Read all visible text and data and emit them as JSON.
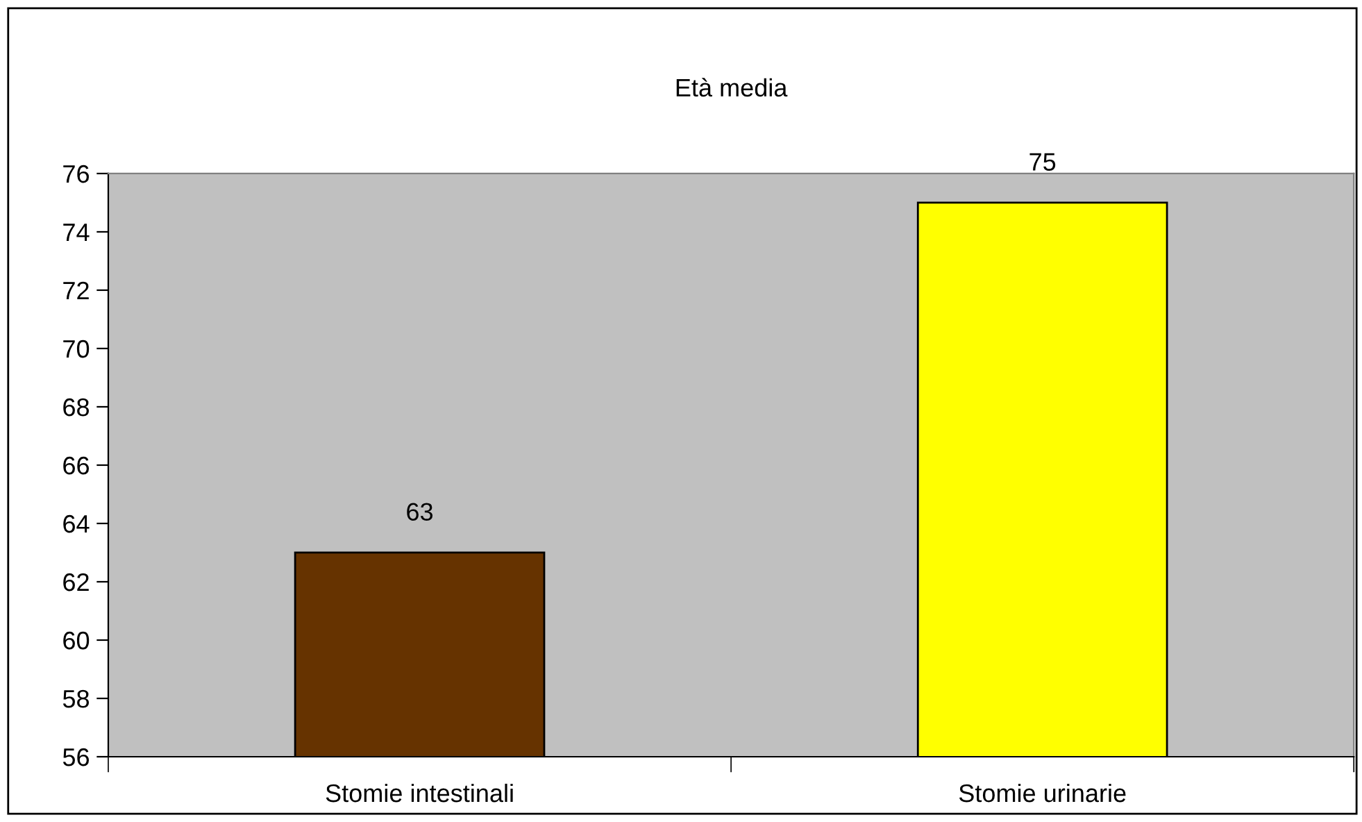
{
  "chart_data": {
    "type": "bar",
    "title": "Età media",
    "categories": [
      "Stomie intestinali",
      "Stomie urinarie"
    ],
    "values": [
      63,
      75
    ],
    "colors": [
      "#663300",
      "#ffff00"
    ],
    "ylim": [
      56,
      76
    ],
    "yticks": [
      56,
      58,
      60,
      62,
      64,
      66,
      68,
      70,
      72,
      74,
      76
    ],
    "grid": false,
    "data_labels": true
  }
}
